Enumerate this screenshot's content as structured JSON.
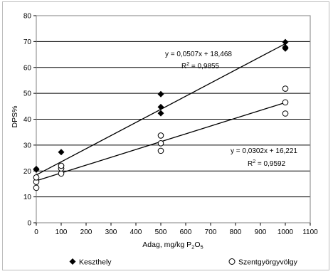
{
  "chart_data": {
    "type": "scatter",
    "title": "",
    "xlabel": "Adag, mg/kg P",
    "xlabel_sub": "2",
    "xlabel_mid": "O",
    "xlabel_sub2": "5",
    "ylabel": "DPS%",
    "xlim": [
      0,
      1100
    ],
    "ylim": [
      0,
      80
    ],
    "xticks": [
      "0",
      "100",
      "200",
      "300",
      "400",
      "500",
      "600",
      "700",
      "800",
      "900",
      "1000",
      "1100"
    ],
    "yticks": [
      "0",
      "10",
      "20",
      "30",
      "40",
      "50",
      "60",
      "70",
      "80"
    ],
    "grid": "horizontal",
    "legend_position": "bottom",
    "series": [
      {
        "name": "Keszthely",
        "marker": "filled-diamond",
        "color": "#000000",
        "points": [
          {
            "x": 0,
            "y": 20.5
          },
          {
            "x": 0,
            "y": 20.8
          },
          {
            "x": 100,
            "y": 27.3
          },
          {
            "x": 100,
            "y": 22.0
          },
          {
            "x": 100,
            "y": 21.0
          },
          {
            "x": 500,
            "y": 49.7
          },
          {
            "x": 500,
            "y": 44.7
          },
          {
            "x": 500,
            "y": 42.3
          },
          {
            "x": 1000,
            "y": 69.8
          },
          {
            "x": 1000,
            "y": 67.8
          },
          {
            "x": 1000,
            "y": 67.3
          }
        ],
        "trendline": {
          "slope": 0.0507,
          "intercept": 18.468,
          "equation": "y = 0,0507x + 18,468",
          "r2_label": "R",
          "r2_value": " = 0,9855"
        }
      },
      {
        "name": "Szentgyörgyvölgy",
        "marker": "open-circle",
        "color": "#000000",
        "points": [
          {
            "x": 0,
            "y": 13.5
          },
          {
            "x": 0,
            "y": 15.8
          },
          {
            "x": 0,
            "y": 17.5
          },
          {
            "x": 100,
            "y": 19.0
          },
          {
            "x": 100,
            "y": 21.0
          },
          {
            "x": 100,
            "y": 22.0
          },
          {
            "x": 500,
            "y": 27.8
          },
          {
            "x": 500,
            "y": 30.7
          },
          {
            "x": 500,
            "y": 33.7
          },
          {
            "x": 1000,
            "y": 42.2
          },
          {
            "x": 1000,
            "y": 46.5
          },
          {
            "x": 1000,
            "y": 51.8
          }
        ],
        "trendline": {
          "slope": 0.0302,
          "intercept": 16.221,
          "equation": "y = 0,0302x + 16,221",
          "r2_label": "R",
          "r2_value": " = 0,9592"
        }
      }
    ]
  }
}
